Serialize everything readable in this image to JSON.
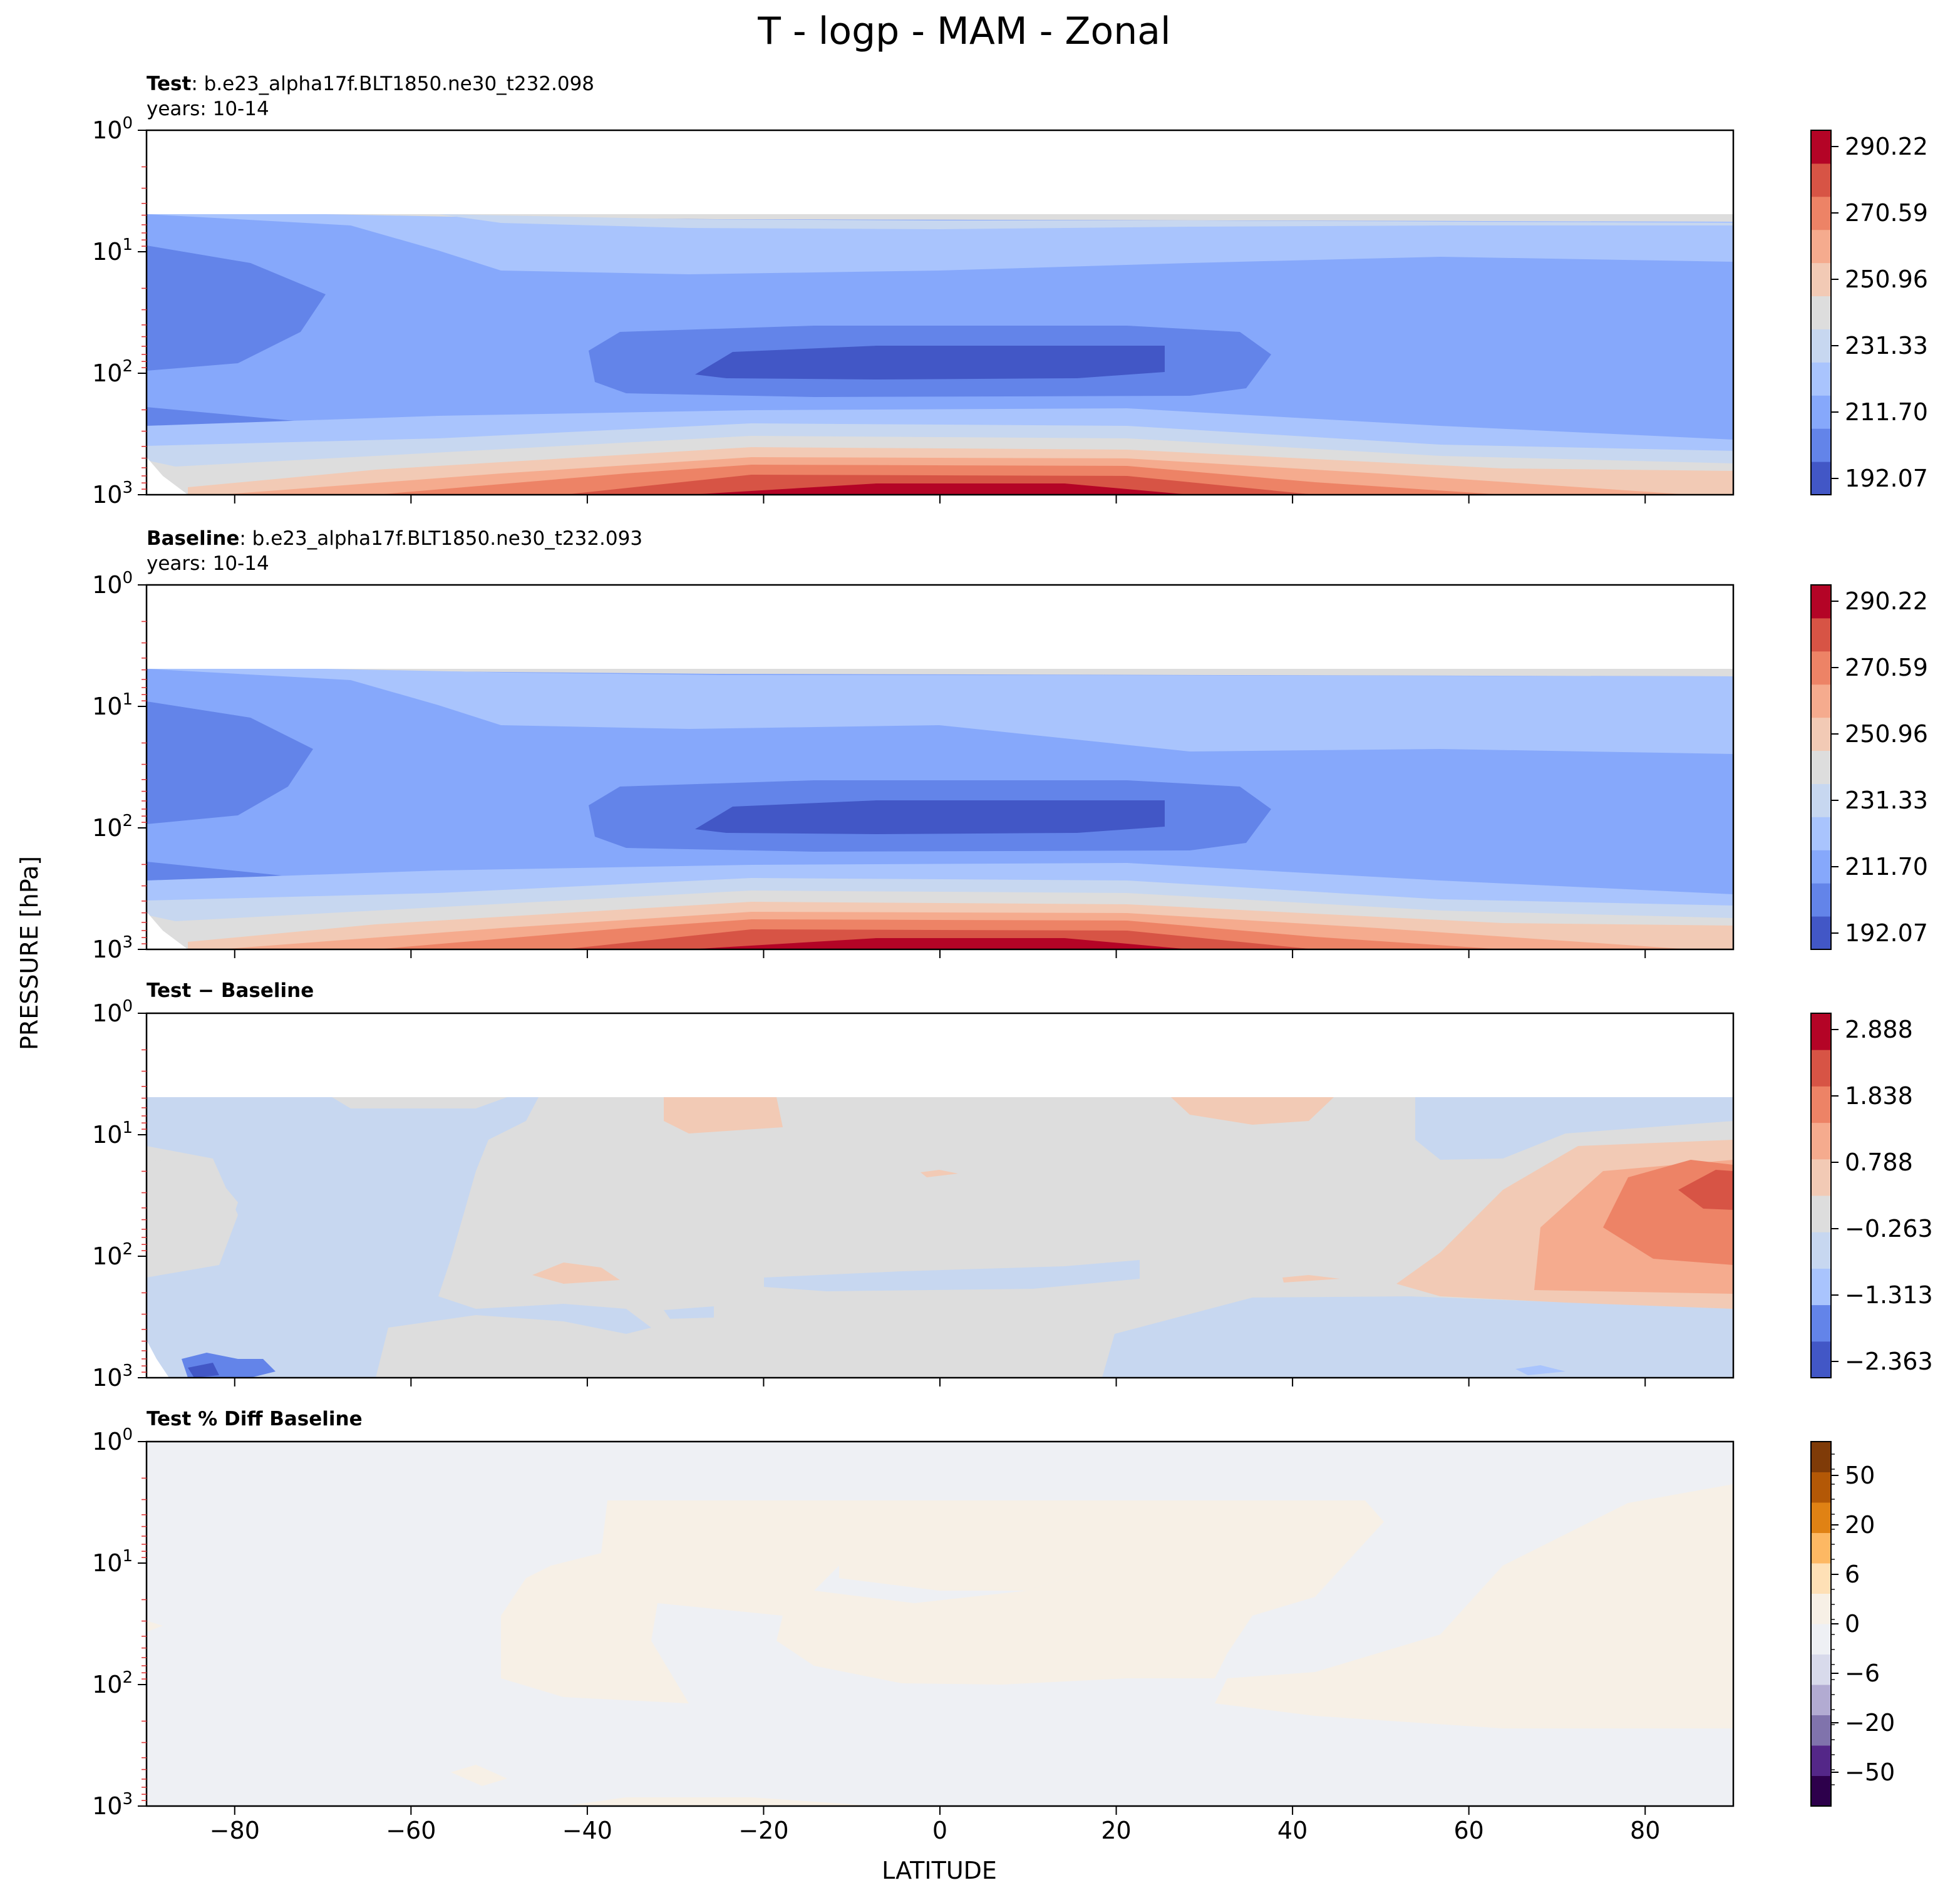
{
  "figure": {
    "title": "T - logp - MAM - Zonal",
    "ylabel": "PRESSURE [hPa]",
    "xlabel": "LATITUDE"
  },
  "chart_data": [
    {
      "type": "heatmap",
      "panel": "test",
      "label_bold": "Test",
      "label_rest": ": b.e23_alpha17f.BLT1850.ne30_t232.098",
      "years": "years: 10-14",
      "xlim": [
        -90,
        90
      ],
      "ylim_hPa": [
        1000,
        1
      ],
      "colormap": "coolwarm",
      "colorbar_ticks": [
        "290.22",
        "270.59",
        "250.96",
        "231.33",
        "211.70",
        "192.07"
      ],
      "colorbar_range": [
        192.07,
        299.0
      ],
      "colorbar_colors": [
        "#4257c6",
        "#6384e9",
        "#86a8fb",
        "#a9c4fd",
        "#c7d7f0",
        "#dddddd",
        "#f2cab5",
        "#f5ab8e",
        "#ed8366",
        "#d75445",
        "#b40426"
      ]
    },
    {
      "type": "heatmap",
      "panel": "baseline",
      "label_bold": "Baseline",
      "label_rest": ": b.e23_alpha17f.BLT1850.ne30_t232.093",
      "years": "years: 10-14",
      "xlim": [
        -90,
        90
      ],
      "ylim_hPa": [
        1000,
        1
      ],
      "colormap": "coolwarm",
      "colorbar_ticks": [
        "290.22",
        "270.59",
        "250.96",
        "231.33",
        "211.70",
        "192.07"
      ],
      "colorbar_range": [
        192.07,
        299.0
      ],
      "colorbar_colors": [
        "#4257c6",
        "#6384e9",
        "#86a8fb",
        "#a9c4fd",
        "#c7d7f0",
        "#dddddd",
        "#f2cab5",
        "#f5ab8e",
        "#ed8366",
        "#d75445",
        "#b40426"
      ]
    },
    {
      "type": "heatmap",
      "panel": "difference",
      "label_bold": "Test − Baseline",
      "xlim": [
        -90,
        90
      ],
      "ylim_hPa": [
        1000,
        1
      ],
      "colormap": "coolwarm",
      "colorbar_ticks": [
        "2.888",
        "1.838",
        "0.788",
        "−0.263",
        "−1.313",
        "−2.363"
      ],
      "colorbar_range": [
        -2.888,
        2.888
      ],
      "colorbar_colors": [
        "#4257c6",
        "#6384e9",
        "#a9c4fd",
        "#c7d7f0",
        "#dddddd",
        "#f2cab5",
        "#f5ab8e",
        "#ed8366",
        "#d75445",
        "#b40426"
      ]
    },
    {
      "type": "heatmap",
      "panel": "percent_difference",
      "label_bold": "Test % Diff Baseline",
      "xlim": [
        -90,
        90
      ],
      "ylim_hPa": [
        1000,
        1
      ],
      "colormap": "PuOr_r",
      "colorbar_ticks": [
        "50",
        "20",
        "6",
        "0",
        "−6",
        "−20",
        "−50"
      ],
      "colorbar_colors": [
        "#2d004b",
        "#542788",
        "#8073ac",
        "#b2abd2",
        "#d8daeb",
        "#eef0f4",
        "#f7f0e6",
        "#fee0b6",
        "#fdb863",
        "#e08214",
        "#b35806",
        "#7f3b08"
      ]
    }
  ],
  "axes": {
    "x_ticks": [
      "−80",
      "−60",
      "−40",
      "−20",
      "0",
      "20",
      "40",
      "60",
      "80"
    ],
    "x_tick_values": [
      -80,
      -60,
      -40,
      -20,
      0,
      20,
      40,
      60,
      80
    ],
    "y_ticks": [
      {
        "base": "10",
        "exp": "0",
        "value": 1
      },
      {
        "base": "10",
        "exp": "1",
        "value": 10
      },
      {
        "base": "10",
        "exp": "2",
        "value": 100
      },
      {
        "base": "10",
        "exp": "3",
        "value": 1000
      }
    ]
  }
}
